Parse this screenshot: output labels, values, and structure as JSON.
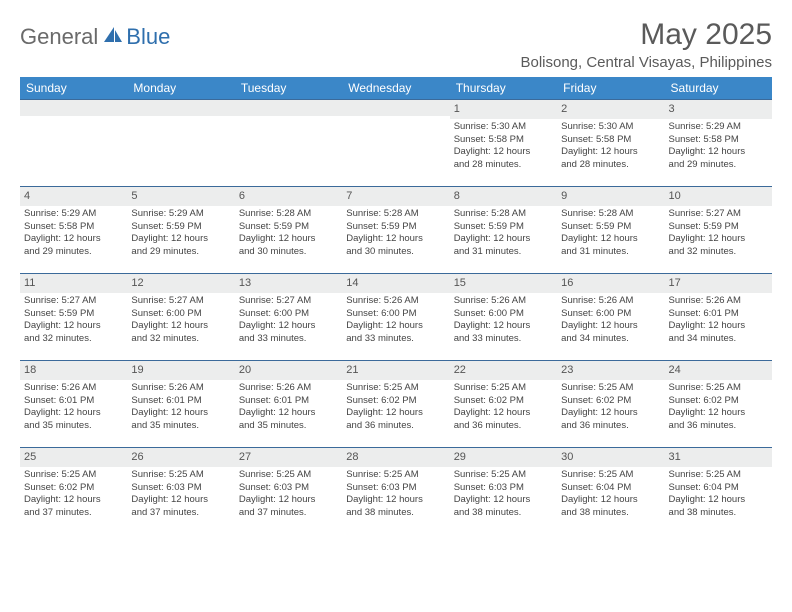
{
  "logo": {
    "general": "General",
    "blue": "Blue"
  },
  "title": "May 2025",
  "location": "Bolisong, Central Visayas, Philippines",
  "header_bg": "#3b87c8",
  "header_text": "#ffffff",
  "rule_color": "#3b6a9a",
  "daynum_bg": "#eceded",
  "dayHeaders": [
    "Sunday",
    "Monday",
    "Tuesday",
    "Wednesday",
    "Thursday",
    "Friday",
    "Saturday"
  ],
  "weeks": [
    [
      {
        "n": "",
        "sr": "",
        "ss": "",
        "d1": "",
        "d2": ""
      },
      {
        "n": "",
        "sr": "",
        "ss": "",
        "d1": "",
        "d2": ""
      },
      {
        "n": "",
        "sr": "",
        "ss": "",
        "d1": "",
        "d2": ""
      },
      {
        "n": "",
        "sr": "",
        "ss": "",
        "d1": "",
        "d2": ""
      },
      {
        "n": "1",
        "sr": "Sunrise: 5:30 AM",
        "ss": "Sunset: 5:58 PM",
        "d1": "Daylight: 12 hours",
        "d2": "and 28 minutes."
      },
      {
        "n": "2",
        "sr": "Sunrise: 5:30 AM",
        "ss": "Sunset: 5:58 PM",
        "d1": "Daylight: 12 hours",
        "d2": "and 28 minutes."
      },
      {
        "n": "3",
        "sr": "Sunrise: 5:29 AM",
        "ss": "Sunset: 5:58 PM",
        "d1": "Daylight: 12 hours",
        "d2": "and 29 minutes."
      }
    ],
    [
      {
        "n": "4",
        "sr": "Sunrise: 5:29 AM",
        "ss": "Sunset: 5:58 PM",
        "d1": "Daylight: 12 hours",
        "d2": "and 29 minutes."
      },
      {
        "n": "5",
        "sr": "Sunrise: 5:29 AM",
        "ss": "Sunset: 5:59 PM",
        "d1": "Daylight: 12 hours",
        "d2": "and 29 minutes."
      },
      {
        "n": "6",
        "sr": "Sunrise: 5:28 AM",
        "ss": "Sunset: 5:59 PM",
        "d1": "Daylight: 12 hours",
        "d2": "and 30 minutes."
      },
      {
        "n": "7",
        "sr": "Sunrise: 5:28 AM",
        "ss": "Sunset: 5:59 PM",
        "d1": "Daylight: 12 hours",
        "d2": "and 30 minutes."
      },
      {
        "n": "8",
        "sr": "Sunrise: 5:28 AM",
        "ss": "Sunset: 5:59 PM",
        "d1": "Daylight: 12 hours",
        "d2": "and 31 minutes."
      },
      {
        "n": "9",
        "sr": "Sunrise: 5:28 AM",
        "ss": "Sunset: 5:59 PM",
        "d1": "Daylight: 12 hours",
        "d2": "and 31 minutes."
      },
      {
        "n": "10",
        "sr": "Sunrise: 5:27 AM",
        "ss": "Sunset: 5:59 PM",
        "d1": "Daylight: 12 hours",
        "d2": "and 32 minutes."
      }
    ],
    [
      {
        "n": "11",
        "sr": "Sunrise: 5:27 AM",
        "ss": "Sunset: 5:59 PM",
        "d1": "Daylight: 12 hours",
        "d2": "and 32 minutes."
      },
      {
        "n": "12",
        "sr": "Sunrise: 5:27 AM",
        "ss": "Sunset: 6:00 PM",
        "d1": "Daylight: 12 hours",
        "d2": "and 32 minutes."
      },
      {
        "n": "13",
        "sr": "Sunrise: 5:27 AM",
        "ss": "Sunset: 6:00 PM",
        "d1": "Daylight: 12 hours",
        "d2": "and 33 minutes."
      },
      {
        "n": "14",
        "sr": "Sunrise: 5:26 AM",
        "ss": "Sunset: 6:00 PM",
        "d1": "Daylight: 12 hours",
        "d2": "and 33 minutes."
      },
      {
        "n": "15",
        "sr": "Sunrise: 5:26 AM",
        "ss": "Sunset: 6:00 PM",
        "d1": "Daylight: 12 hours",
        "d2": "and 33 minutes."
      },
      {
        "n": "16",
        "sr": "Sunrise: 5:26 AM",
        "ss": "Sunset: 6:00 PM",
        "d1": "Daylight: 12 hours",
        "d2": "and 34 minutes."
      },
      {
        "n": "17",
        "sr": "Sunrise: 5:26 AM",
        "ss": "Sunset: 6:01 PM",
        "d1": "Daylight: 12 hours",
        "d2": "and 34 minutes."
      }
    ],
    [
      {
        "n": "18",
        "sr": "Sunrise: 5:26 AM",
        "ss": "Sunset: 6:01 PM",
        "d1": "Daylight: 12 hours",
        "d2": "and 35 minutes."
      },
      {
        "n": "19",
        "sr": "Sunrise: 5:26 AM",
        "ss": "Sunset: 6:01 PM",
        "d1": "Daylight: 12 hours",
        "d2": "and 35 minutes."
      },
      {
        "n": "20",
        "sr": "Sunrise: 5:26 AM",
        "ss": "Sunset: 6:01 PM",
        "d1": "Daylight: 12 hours",
        "d2": "and 35 minutes."
      },
      {
        "n": "21",
        "sr": "Sunrise: 5:25 AM",
        "ss": "Sunset: 6:02 PM",
        "d1": "Daylight: 12 hours",
        "d2": "and 36 minutes."
      },
      {
        "n": "22",
        "sr": "Sunrise: 5:25 AM",
        "ss": "Sunset: 6:02 PM",
        "d1": "Daylight: 12 hours",
        "d2": "and 36 minutes."
      },
      {
        "n": "23",
        "sr": "Sunrise: 5:25 AM",
        "ss": "Sunset: 6:02 PM",
        "d1": "Daylight: 12 hours",
        "d2": "and 36 minutes."
      },
      {
        "n": "24",
        "sr": "Sunrise: 5:25 AM",
        "ss": "Sunset: 6:02 PM",
        "d1": "Daylight: 12 hours",
        "d2": "and 36 minutes."
      }
    ],
    [
      {
        "n": "25",
        "sr": "Sunrise: 5:25 AM",
        "ss": "Sunset: 6:02 PM",
        "d1": "Daylight: 12 hours",
        "d2": "and 37 minutes."
      },
      {
        "n": "26",
        "sr": "Sunrise: 5:25 AM",
        "ss": "Sunset: 6:03 PM",
        "d1": "Daylight: 12 hours",
        "d2": "and 37 minutes."
      },
      {
        "n": "27",
        "sr": "Sunrise: 5:25 AM",
        "ss": "Sunset: 6:03 PM",
        "d1": "Daylight: 12 hours",
        "d2": "and 37 minutes."
      },
      {
        "n": "28",
        "sr": "Sunrise: 5:25 AM",
        "ss": "Sunset: 6:03 PM",
        "d1": "Daylight: 12 hours",
        "d2": "and 38 minutes."
      },
      {
        "n": "29",
        "sr": "Sunrise: 5:25 AM",
        "ss": "Sunset: 6:03 PM",
        "d1": "Daylight: 12 hours",
        "d2": "and 38 minutes."
      },
      {
        "n": "30",
        "sr": "Sunrise: 5:25 AM",
        "ss": "Sunset: 6:04 PM",
        "d1": "Daylight: 12 hours",
        "d2": "and 38 minutes."
      },
      {
        "n": "31",
        "sr": "Sunrise: 5:25 AM",
        "ss": "Sunset: 6:04 PM",
        "d1": "Daylight: 12 hours",
        "d2": "and 38 minutes."
      }
    ]
  ]
}
